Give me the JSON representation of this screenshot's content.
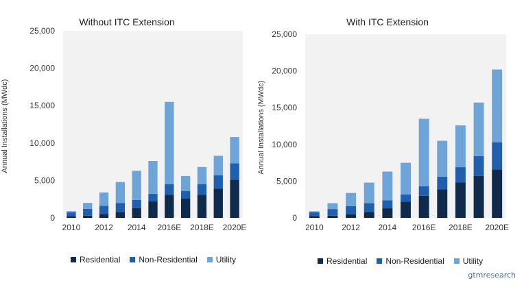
{
  "legend": [
    "Residential",
    "Non-Residential",
    "Utility"
  ],
  "colors": {
    "residential": "#0f2a4a",
    "non_residential": "#1f5fad",
    "utility": "#6ea4d8",
    "plot_bg": "#f2f2f2"
  },
  "brand": "gtmresearch",
  "chart_data": [
    {
      "type": "bar",
      "stacked": true,
      "title": "Without ITC Extension",
      "ylabel": "Annual Installations (MWdc)",
      "ylim": [
        0,
        25000
      ],
      "yticks": [
        "0",
        "5,000",
        "10,000",
        "15,000",
        "20,000",
        "25,000"
      ],
      "categories": [
        "2010",
        "2011",
        "2012",
        "2013",
        "2014",
        "2015",
        "2016E",
        "2017E",
        "2018E",
        "2019E",
        "2020E"
      ],
      "xtick_labels": [
        "2010",
        "",
        "2012",
        "",
        "2014",
        "",
        "2016E",
        "",
        "2018E",
        "",
        "2020E"
      ],
      "series": [
        {
          "name": "Residential",
          "values": [
            250,
            300,
            500,
            800,
            1300,
            2200,
            3100,
            2600,
            3100,
            3900,
            5100
          ]
        },
        {
          "name": "Non-Residential",
          "values": [
            500,
            900,
            1100,
            1200,
            1100,
            1000,
            1400,
            1000,
            1400,
            1800,
            2200
          ]
        },
        {
          "name": "Utility",
          "values": [
            150,
            800,
            1800,
            2800,
            3900,
            4400,
            11000,
            2000,
            2300,
            2600,
            3500
          ]
        }
      ],
      "legend_position": "bottom"
    },
    {
      "type": "bar",
      "stacked": true,
      "title": "With ITC Extension",
      "ylabel": "Annual Installations (MWdc)",
      "ylim": [
        0,
        25000
      ],
      "yticks": [
        "0",
        "5,000",
        "10,000",
        "15,000",
        "20,000",
        "25,000"
      ],
      "categories": [
        "2010",
        "2011",
        "2012",
        "2013",
        "2014",
        "2015",
        "2016E",
        "2017E",
        "2018E",
        "2019E",
        "2020E"
      ],
      "xtick_labels": [
        "2010",
        "",
        "2012",
        "",
        "2014",
        "",
        "2016E",
        "",
        "2018E",
        "",
        "2020E"
      ],
      "series": [
        {
          "name": "Residential",
          "values": [
            250,
            300,
            500,
            800,
            1300,
            2200,
            3000,
            3900,
            4800,
            5700,
            6600
          ]
        },
        {
          "name": "Non-Residential",
          "values": [
            500,
            900,
            1100,
            1200,
            1100,
            1000,
            1300,
            1700,
            2100,
            2700,
            3700
          ]
        },
        {
          "name": "Utility",
          "values": [
            150,
            800,
            1800,
            2800,
            3900,
            4300,
            9200,
            4900,
            5700,
            7300,
            9900
          ]
        }
      ],
      "legend_position": "bottom"
    }
  ]
}
